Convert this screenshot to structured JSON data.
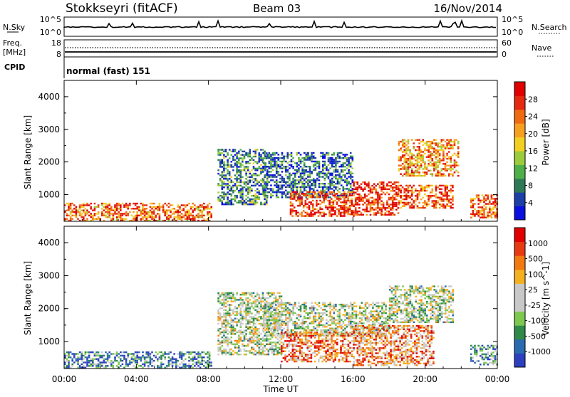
{
  "header": {
    "station": "Stokkseyri (fitACF)",
    "beam": "Beam 03",
    "date": "16/Nov/2014"
  },
  "top_panels": {
    "nsky_label": "N.Sky",
    "nsky_tick_top": "10^5",
    "nsky_tick_bottom": "10^0",
    "nsearch_label": "N.Search",
    "nsearch_tick_top": "10^5",
    "nsearch_tick_bottom": "10^0",
    "freq_label_1": "Freq.",
    "freq_label_2": "[MHz]",
    "freq_tick_top": "18",
    "freq_tick_bottom": "8",
    "nave_label": "Nave",
    "nave_tick_top": "60",
    "nave_tick_bottom": "0",
    "cpid_label": "CPID",
    "cpid_value": "normal (fast) 151"
  },
  "chart_data": [
    {
      "type": "heatmap",
      "panel": "power",
      "ylabel": "Slant Range [km]",
      "ylim": [
        180,
        4500
      ],
      "yticks": [
        "1000",
        "2000",
        "3000",
        "4000"
      ],
      "xlim_hours": [
        0,
        24
      ],
      "colorbar_label": "Power [dB]",
      "colorbar_ticks": [
        "4",
        "8",
        "12",
        "16",
        "20",
        "24",
        "28"
      ],
      "colorscale": [
        "#0a10e0",
        "#1c3fa8",
        "#2f7a56",
        "#4fb04a",
        "#9ccc3c",
        "#f2d021",
        "#f7a020",
        "#f06a12",
        "#e52a10",
        "#e00000"
      ],
      "echo_regions": [
        {
          "t0": 0.0,
          "t1": 8.2,
          "r0": 200,
          "r1": 750,
          "level": 0.75
        },
        {
          "t0": 8.5,
          "t1": 11.2,
          "r0": 700,
          "r1": 2400,
          "level": 0.25
        },
        {
          "t0": 11.0,
          "t1": 16.0,
          "r0": 900,
          "r1": 2300,
          "level": 0.2
        },
        {
          "t0": 12.5,
          "t1": 16.0,
          "r0": 350,
          "r1": 1100,
          "level": 0.85
        },
        {
          "t0": 16.0,
          "t1": 18.5,
          "r0": 400,
          "r1": 1400,
          "level": 0.9
        },
        {
          "t0": 18.5,
          "t1": 21.8,
          "r0": 1600,
          "r1": 2700,
          "level": 0.7
        },
        {
          "t0": 18.5,
          "t1": 21.5,
          "r0": 600,
          "r1": 1300,
          "level": 0.8
        },
        {
          "t0": 22.5,
          "t1": 24.0,
          "r0": 300,
          "r1": 1000,
          "level": 0.8
        }
      ]
    },
    {
      "type": "heatmap",
      "panel": "velocity",
      "xlabel": "Time UT",
      "ylabel": "Slant Range [km]",
      "ylim": [
        180,
        4500
      ],
      "yticks": [
        "1000",
        "2000",
        "3000",
        "4000"
      ],
      "xlim_hours": [
        0,
        24
      ],
      "xticks": [
        "00:00",
        "04:00",
        "08:00",
        "12:00",
        "16:00",
        "20:00",
        "00:00"
      ],
      "colorbar_label": "Velocity [m s^-1]",
      "colorbar_ticks": [
        "1000",
        "500",
        "100",
        "25",
        "-25",
        "-100",
        "-500",
        "-1000"
      ],
      "colorscale": [
        "#2b3fbf",
        "#2a6ab0",
        "#2f8a4a",
        "#7ec850",
        "#c8c8c8",
        "#c8c8c8",
        "#f5b020",
        "#f27a10",
        "#e83a10",
        "#e00000"
      ],
      "echo_regions": [
        {
          "t0": 0.0,
          "t1": 8.2,
          "r0": 200,
          "r1": 700,
          "level": 0.2
        },
        {
          "t0": 8.5,
          "t1": 12.0,
          "r0": 600,
          "r1": 2500,
          "level": 0.45
        },
        {
          "t0": 11.0,
          "t1": 18.0,
          "r0": 1200,
          "r1": 2200,
          "level": 0.45
        },
        {
          "t0": 12.0,
          "t1": 16.0,
          "r0": 400,
          "r1": 1300,
          "level": 0.75
        },
        {
          "t0": 16.0,
          "t1": 20.5,
          "r0": 300,
          "r1": 1500,
          "level": 0.7
        },
        {
          "t0": 18.0,
          "t1": 21.5,
          "r0": 1600,
          "r1": 2700,
          "level": 0.45
        },
        {
          "t0": 22.5,
          "t1": 24.0,
          "r0": 300,
          "r1": 900,
          "level": 0.25
        }
      ]
    }
  ]
}
